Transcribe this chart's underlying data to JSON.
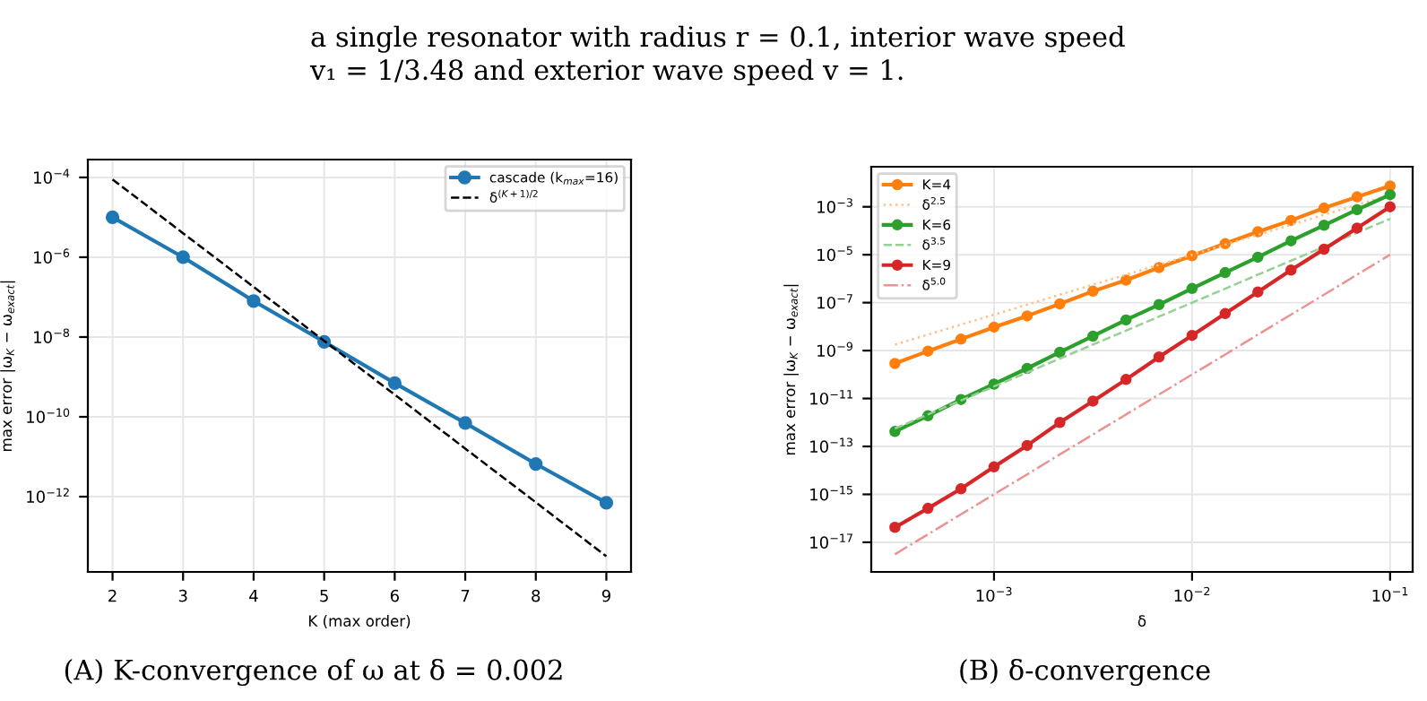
{
  "chart_data": [
    {
      "type": "line",
      "x": [
        2,
        3,
        4,
        5,
        6,
        7,
        8,
        9
      ],
      "xlim": [
        1.65,
        9.35
      ],
      "xticks": [
        2,
        3,
        4,
        5,
        6,
        7,
        8,
        9
      ],
      "log": "y",
      "ylim": [
        1.3e-14,
        0.00028
      ],
      "yticks": [
        {
          "value": 0.0001,
          "label": "10$^{−4}$"
        },
        {
          "value": 1e-06,
          "label": "10$^{−6}$"
        },
        {
          "value": 1e-08,
          "label": "10$^{−8}$"
        },
        {
          "value": 1e-10,
          "label": "10$^{−10}$"
        },
        {
          "value": 1e-12,
          "label": "10$^{−12}$"
        }
      ],
      "xlabel": "K (max order)",
      "ylabel": "max error |ω$_{K}$ − ω$_{exact}$|",
      "grid": true,
      "legend": "top right",
      "series": [
        {
          "name": "cascade (k$_{max}$=16)",
          "color": "#1f77b4",
          "marker": "circle",
          "line_style": "solid",
          "values": [
            1e-05,
            1e-06,
            8e-08,
            7.6e-09,
            7e-10,
            7e-11,
            6.6e-12,
            7e-13
          ]
        },
        {
          "name": "δ$^{(K+1)/2}$",
          "color": "#000000",
          "marker": "none",
          "line_style": "dashed",
          "values": [
            8.9e-05,
            4e-06,
            1.8e-07,
            8e-09,
            3.6e-10,
            1.6e-11,
            7.2e-13,
            3.2e-14
          ]
        }
      ],
      "annotations": [
        "a single resonator with radius r = 0.1, interior wave speed\nv₁ = 1/3.48 and exterior wave speed v = 1.",
        "(A) K-convergence of ω at δ = 0.002"
      ]
    },
    {
      "type": "line",
      "log": "xy",
      "xlim": [
        0.00024,
        0.13
      ],
      "xticks": [
        {
          "value": 0.001,
          "label": "10$^{−3}$"
        },
        {
          "value": 0.01,
          "label": "10$^{−2}$"
        },
        {
          "value": 0.1,
          "label": "10$^{−1}$"
        }
      ],
      "ylim": [
        5.8e-19,
        0.047
      ],
      "yticks": [
        {
          "value": 0.001,
          "label": "10$^{−3}$"
        },
        {
          "value": 1e-05,
          "label": "10$^{−5}$"
        },
        {
          "value": 1e-07,
          "label": "10$^{−7}$"
        },
        {
          "value": 1e-09,
          "label": "10$^{−9}$"
        },
        {
          "value": 1e-11,
          "label": "10$^{−11}$"
        },
        {
          "value": 1e-13,
          "label": "10$^{−13}$"
        },
        {
          "value": 1e-15,
          "label": "10$^{−15}$"
        },
        {
          "value": 1e-17,
          "label": "10$^{−17}$"
        }
      ],
      "xlabel": "δ",
      "ylabel": "max error |ω$_{K}$ − ω$_{exact}$|",
      "grid": true,
      "legend": "top left",
      "x": [
        0.000316,
        0.000464,
        0.000681,
        0.001,
        0.00147,
        0.00215,
        0.00316,
        0.00464,
        0.00681,
        0.01,
        0.0147,
        0.0215,
        0.0316,
        0.0464,
        0.0681,
        0.1
      ],
      "series": [
        {
          "name": "K=4",
          "color": "#ff7f0e",
          "marker": "circle",
          "line_style": "solid",
          "values": [
            2.9e-10,
            9.5e-10,
            3e-09,
            9.5e-09,
            2.8e-08,
            8.9e-08,
            3e-07,
            8.7e-07,
            2.9e-06,
            9.1e-06,
            2.9e-05,
            9.1e-05,
            0.00027,
            0.00089,
            0.0026,
            0.0074
          ]
        },
        {
          "name": "δ$^{2.5}$",
          "color": "#ffc08a",
          "marker": "none",
          "line_style": "dotted",
          "values": [
            1.78e-09,
            4.64e-09,
            1.21e-08,
            3.16e-08,
            8.25e-08,
            2.15e-07,
            5.62e-07,
            1.47e-06,
            3.83e-06,
            1e-05,
            2.61e-05,
            6.81e-05,
            0.000178,
            0.000464,
            0.00121,
            0.00316
          ]
        },
        {
          "name": "K=6",
          "color": "#2ca02c",
          "marker": "circle",
          "line_style": "solid",
          "values": [
            4.2e-13,
            1.9e-12,
            9.1e-12,
            4e-11,
            1.8e-10,
            8.5e-10,
            4e-09,
            1.9e-08,
            8.3e-08,
            3.9e-07,
            1.8e-06,
            7.9e-06,
            3.8e-05,
            0.00017,
            0.00076,
            0.0032
          ]
        },
        {
          "name": "δ$^{3.5}$",
          "color": "#96d095",
          "marker": "none",
          "line_style": "dashed",
          "values": [
            5.62e-13,
            2.15e-12,
            8.25e-12,
            3.16e-11,
            1.21e-10,
            4.64e-10,
            1.78e-09,
            6.81e-09,
            2.61e-08,
            1e-07,
            3.83e-07,
            1.47e-06,
            5.62e-06,
            2.15e-05,
            8.25e-05,
            0.000316
          ]
        },
        {
          "name": "K=9",
          "color": "#d62728",
          "marker": "circle",
          "line_style": "solid",
          "values": [
            4.2e-17,
            2.6e-16,
            1.7e-15,
            1.4e-14,
            1.1e-13,
            1e-12,
            7.8e-12,
            6.2e-11,
            5.4e-10,
            4.3e-09,
            3.5e-08,
            2.8e-07,
            2.3e-06,
            1.7e-05,
            0.00013,
            0.001
          ]
        },
        {
          "name": "δ$^{5.0}$",
          "color": "#eb9393",
          "marker": "none",
          "line_style": "dashdot",
          "values": [
            3.16e-18,
            2.15e-17,
            1.47e-16,
            1e-15,
            6.81e-15,
            4.64e-14,
            3.16e-13,
            2.15e-12,
            1.47e-11,
            1e-10,
            6.81e-10,
            4.64e-09,
            3.16e-08,
            2.15e-07,
            1.47e-06,
            1e-05
          ]
        }
      ],
      "annotations": [
        "(B) δ-convergence"
      ]
    }
  ]
}
